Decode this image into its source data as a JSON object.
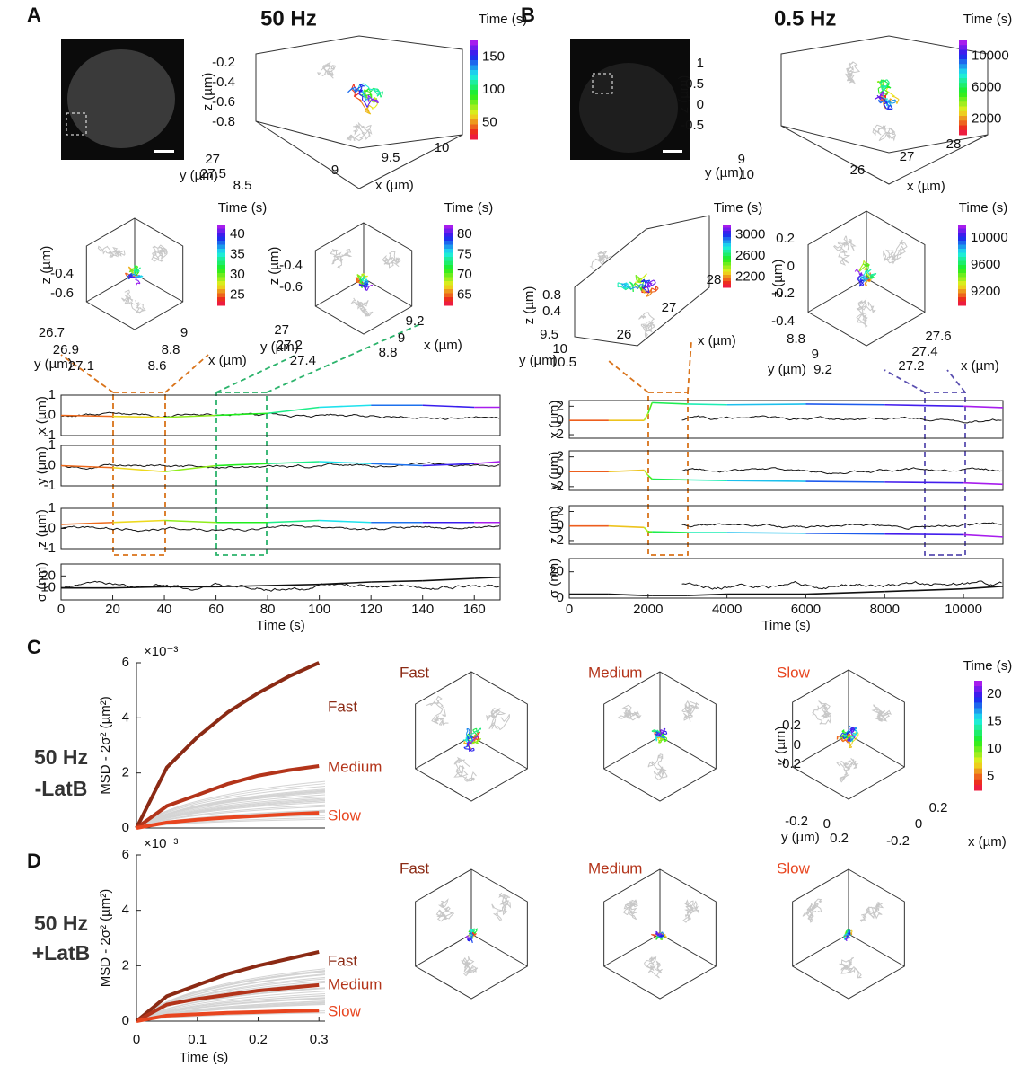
{
  "panels": [
    "A",
    "B",
    "C",
    "D"
  ],
  "headers": [
    "50 Hz",
    "0.5 Hz"
  ],
  "conditions": [
    [
      "50 Hz",
      "-LatB"
    ],
    [
      "50 Hz",
      "+LatB"
    ]
  ],
  "plots3d": [
    {
      "zlabel": "z (µm)",
      "zticks": [
        -0.2,
        -0.4,
        -0.6,
        -0.8
      ],
      "ylabel": "y (µm)",
      "yticks": [
        27,
        27.5
      ],
      "xlabel": "x (µm)",
      "xticks": [
        8.5,
        9,
        9.5,
        10
      ],
      "colorbar": {
        "label": "Time (s)",
        "ticks": [
          150,
          100,
          50
        ]
      }
    },
    {
      "zlabel": "z (µm)",
      "zticks": [
        -0.4,
        -0.6
      ],
      "ylabel": "y (µm)",
      "yticks": [
        26.7,
        26.9,
        27.1
      ],
      "xlabel": "x (µm)",
      "xticks": [
        9,
        8.8,
        8.6
      ],
      "colorbar": {
        "label": "Time (s)",
        "ticks": [
          40,
          35,
          30,
          25
        ]
      }
    },
    {
      "zlabel": "z (µm)",
      "zticks": [
        -0.4,
        -0.6
      ],
      "ylabel": "y (µm)",
      "yticks": [
        27,
        27.2,
        27.4
      ],
      "xlabel": "x (µm)",
      "xticks": [
        9.2,
        9,
        8.8
      ],
      "colorbar": {
        "label": "Time (s)",
        "ticks": [
          80,
          75,
          70,
          65
        ]
      }
    },
    {
      "zlabel": "z (µm)",
      "zticks": [
        1,
        0.5,
        0,
        -0.5
      ],
      "ylabel": "y (µm)",
      "yticks": [
        9,
        10
      ],
      "xlabel": "x (µm)",
      "xticks": [
        26,
        27,
        28
      ],
      "colorbar": {
        "label": "Time (s)",
        "ticks": [
          10000,
          6000,
          2000
        ]
      }
    },
    {
      "zlabel": "z (µm)",
      "zticks": [
        0.8,
        0.4
      ],
      "ylabel": "y (µm)",
      "yticks": [
        9.5,
        10,
        10.5
      ],
      "xlabel": "x (µm)",
      "xticks": [
        28,
        27,
        26
      ],
      "colorbar": {
        "label": "Time (s)",
        "ticks": [
          3000,
          2600,
          2200
        ]
      }
    },
    {
      "zlabel": "z (µm)",
      "zticks": [
        0.2,
        0,
        -0.2,
        -0.4
      ],
      "ylabel": "y (µm)",
      "yticks": [
        8.8,
        9,
        9.2
      ],
      "xlabel": "x (µm)",
      "xticks": [
        27.6,
        27.4,
        27.2
      ],
      "colorbar": {
        "label": "Time (s)",
        "ticks": [
          10000,
          9600,
          9200
        ]
      }
    },
    {
      "zlabel": "z (µm)",
      "zticks": [
        0.2,
        0,
        -0.2
      ],
      "ylabel": "y (µm)",
      "yticks": [
        -0.2,
        0,
        0.2
      ],
      "xlabel": "x (µm)",
      "xticks": [
        0.2,
        0,
        -0.2
      ],
      "colorbar": {
        "label": "Time (s)",
        "ticks": [
          20,
          15,
          10,
          5
        ]
      }
    }
  ],
  "cube_titles": [
    [
      "Fast",
      "Medium",
      "Slow"
    ],
    [
      "Fast",
      "Medium",
      "Slow"
    ]
  ],
  "chart_data": [
    {
      "type": "line",
      "xlabel": "Time (s)",
      "xlim": [
        0,
        170
      ],
      "xticks": [
        0,
        20,
        40,
        60,
        80,
        100,
        120,
        140,
        160
      ],
      "x": [
        0,
        20,
        40,
        60,
        80,
        100,
        120,
        140,
        160,
        170
      ],
      "rows": [
        {
          "ylabel": "x (µm)",
          "ylim": [
            -1,
            1
          ],
          "yticks": [
            1,
            0,
            -1
          ],
          "values": [
            0,
            -0.05,
            -0.1,
            0,
            0.1,
            0.4,
            0.5,
            0.5,
            0.4,
            0.4
          ]
        },
        {
          "ylabel": "y (µm)",
          "ylim": [
            -1,
            1
          ],
          "yticks": [
            1,
            0,
            -1
          ],
          "values": [
            0,
            -0.1,
            -0.3,
            0,
            0.1,
            0.2,
            0.1,
            0,
            0.1,
            0.2
          ]
        },
        {
          "ylabel": "z (µm)",
          "ylim": [
            -1,
            1
          ],
          "yticks": [
            1,
            0,
            -1
          ],
          "values": [
            0.2,
            0.3,
            0.4,
            0.3,
            0.3,
            0.4,
            0.3,
            0.3,
            0.3,
            0.3
          ]
        },
        {
          "ylabel": "σ (nm)",
          "ylim": [
            0,
            30
          ],
          "yticks": [
            10,
            20
          ],
          "values": [
            10,
            10,
            11,
            11,
            12,
            13,
            15,
            16,
            18,
            19
          ]
        }
      ]
    },
    {
      "type": "line",
      "xlabel": "Time (s)",
      "xlim": [
        0,
        11000
      ],
      "xticks": [
        0,
        2000,
        4000,
        6000,
        8000,
        10000
      ],
      "x": [
        0,
        1000,
        1900,
        2000,
        2100,
        3000,
        4000,
        6000,
        8000,
        10000,
        11000
      ],
      "rows": [
        {
          "ylabel": "x (µm)",
          "ylim": [
            -2.5,
            2.8
          ],
          "yticks": [
            2,
            0,
            -2
          ],
          "values": [
            0,
            0,
            0,
            1,
            2.5,
            2.3,
            2.2,
            2.3,
            2.2,
            2,
            1.8
          ]
        },
        {
          "ylabel": "y (µm)",
          "ylim": [
            -2.5,
            2.8
          ],
          "yticks": [
            2,
            0,
            -2
          ],
          "values": [
            0,
            0,
            0.2,
            -0.5,
            -1,
            -1.1,
            -1.2,
            -1.3,
            -1.4,
            -1.5,
            -1.7
          ]
        },
        {
          "ylabel": "z (µm)",
          "ylim": [
            -2.5,
            2.8
          ],
          "yticks": [
            2,
            0,
            -2
          ],
          "values": [
            0,
            0,
            -0.2,
            -0.8,
            -0.8,
            -0.9,
            -0.9,
            -1,
            -1.1,
            -1.2,
            -1.5
          ]
        },
        {
          "ylabel": "σ (nm)",
          "ylim": [
            0,
            30
          ],
          "yticks": [
            0,
            20
          ],
          "values": [
            3,
            3,
            2,
            2,
            2,
            2,
            3,
            3,
            5,
            7,
            9
          ]
        }
      ]
    },
    {
      "type": "msd",
      "ylabel": "MSD - 2σ² (µm²)",
      "multiplier": "×10⁻³",
      "ylim": [
        0,
        6
      ],
      "yticks": [
        0,
        2,
        4,
        6
      ],
      "xlim": [
        0,
        0.31
      ],
      "x": [
        0,
        0.05,
        0.1,
        0.15,
        0.2,
        0.25,
        0.3
      ],
      "series": [
        {
          "name": "Fast",
          "color": "#8b2a14",
          "values": [
            0,
            2.2,
            3.3,
            4.2,
            4.9,
            5.5,
            6.0
          ]
        },
        {
          "name": "Medium",
          "color": "#b3341a",
          "values": [
            0,
            0.8,
            1.2,
            1.6,
            1.9,
            2.1,
            2.25
          ]
        },
        {
          "name": "Slow",
          "color": "#e8451f",
          "values": [
            0,
            0.2,
            0.3,
            0.38,
            0.44,
            0.5,
            0.55
          ]
        }
      ]
    },
    {
      "type": "msd",
      "ylabel": "MSD - 2σ² (µm²)",
      "multiplier": "×10⁻³",
      "ylim": [
        0,
        6
      ],
      "yticks": [
        0,
        2,
        4,
        6
      ],
      "xlim": [
        0,
        0.31
      ],
      "xticks": [
        0,
        0.1,
        0.2,
        0.3
      ],
      "xlabel": "Time (s)",
      "x": [
        0,
        0.05,
        0.1,
        0.15,
        0.2,
        0.25,
        0.3
      ],
      "series": [
        {
          "name": "Fast",
          "color": "#8b2a14",
          "values": [
            0,
            0.9,
            1.3,
            1.7,
            2.0,
            2.25,
            2.5
          ]
        },
        {
          "name": "Medium",
          "color": "#b3341a",
          "values": [
            0,
            0.6,
            0.8,
            0.95,
            1.1,
            1.2,
            1.3
          ]
        },
        {
          "name": "Slow",
          "color": "#e8451f",
          "values": [
            0,
            0.2,
            0.25,
            0.3,
            0.33,
            0.36,
            0.38
          ]
        }
      ]
    }
  ]
}
